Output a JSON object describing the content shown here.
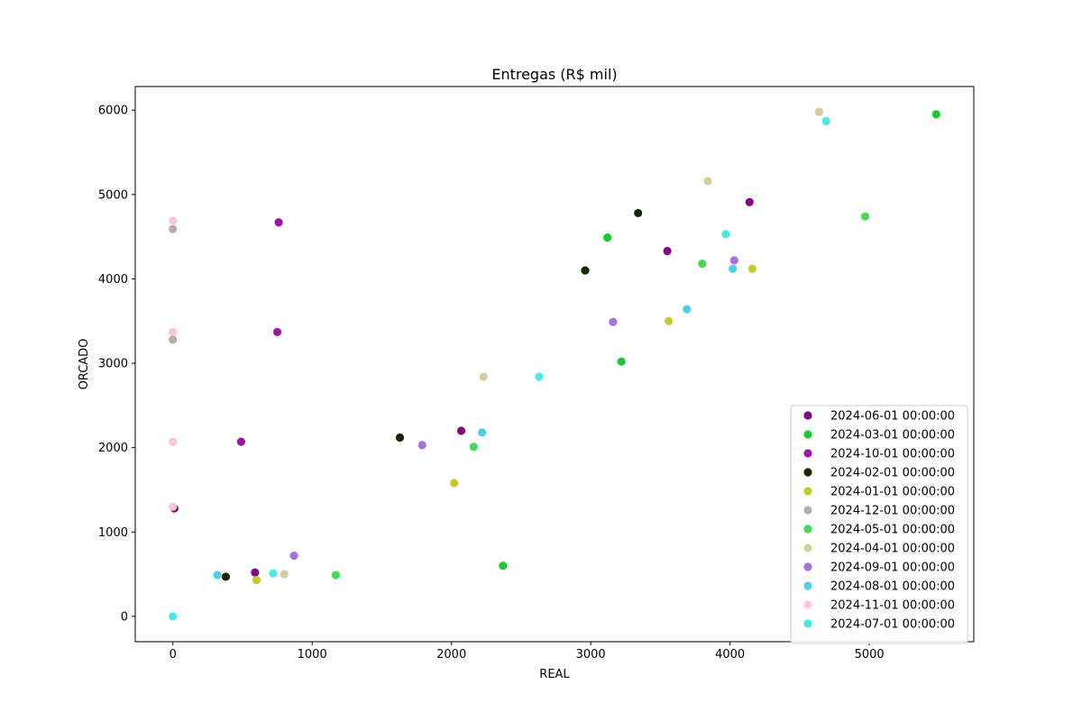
{
  "chart_data": {
    "type": "scatter",
    "title": "Entregas (R$ mil)",
    "xlabel": "REAL",
    "ylabel": "ORCADO",
    "xlim": [
      -270,
      5750
    ],
    "ylim": [
      -300,
      6280
    ],
    "xticks": [
      0,
      1000,
      2000,
      3000,
      4000,
      5000
    ],
    "yticks": [
      0,
      1000,
      2000,
      3000,
      4000,
      5000,
      6000
    ],
    "grid": false,
    "legend_position": "lower-right",
    "series": [
      {
        "name": "2024-06-01 00:00:00",
        "color": "#800a80",
        "points": [
          [
            10,
            1280
          ],
          [
            590,
            520
          ],
          [
            2070,
            2200
          ],
          [
            3550,
            4330
          ],
          [
            4140,
            4910
          ]
        ]
      },
      {
        "name": "2024-03-01 00:00:00",
        "color": "#1ac932",
        "points": [
          [
            2370,
            600
          ],
          [
            3220,
            3020
          ],
          [
            3120,
            4490
          ],
          [
            5480,
            5950
          ]
        ]
      },
      {
        "name": "2024-10-01 00:00:00",
        "color": "#9b17a3",
        "points": [
          [
            490,
            2070
          ],
          [
            750,
            3370
          ],
          [
            760,
            4670
          ]
        ]
      },
      {
        "name": "2024-02-01 00:00:00",
        "color": "#142903",
        "points": [
          [
            380,
            470
          ],
          [
            1630,
            2120
          ],
          [
            2960,
            4100
          ],
          [
            3340,
            4780
          ]
        ]
      },
      {
        "name": "2024-01-01 00:00:00",
        "color": "#c6c832",
        "points": [
          [
            600,
            430
          ],
          [
            2020,
            1580
          ],
          [
            3560,
            3500
          ],
          [
            4160,
            4120
          ]
        ]
      },
      {
        "name": "2024-12-01 00:00:00",
        "color": "#b2b0a3",
        "points": [
          [
            0,
            3280
          ],
          [
            0,
            4590
          ]
        ]
      },
      {
        "name": "2024-05-01 00:00:00",
        "color": "#47d95c",
        "points": [
          [
            1170,
            490
          ],
          [
            2160,
            2010
          ],
          [
            3800,
            4180
          ],
          [
            4970,
            4740
          ]
        ]
      },
      {
        "name": "2024-04-01 00:00:00",
        "color": "#d4cd9c",
        "points": [
          [
            800,
            500
          ],
          [
            2230,
            2840
          ],
          [
            3840,
            5160
          ],
          [
            4640,
            5980
          ]
        ]
      },
      {
        "name": "2024-09-01 00:00:00",
        "color": "#a873d9",
        "points": [
          [
            870,
            720
          ],
          [
            1790,
            2030
          ],
          [
            3160,
            3490
          ],
          [
            4030,
            4220
          ]
        ]
      },
      {
        "name": "2024-08-01 00:00:00",
        "color": "#4ecfe5",
        "points": [
          [
            320,
            490
          ],
          [
            2220,
            2180
          ],
          [
            3690,
            3640
          ],
          [
            4020,
            4120
          ]
        ]
      },
      {
        "name": "2024-11-01 00:00:00",
        "color": "#fcc6d6",
        "points": [
          [
            0,
            1300
          ],
          [
            0,
            2070
          ],
          [
            0,
            3370
          ],
          [
            0,
            4690
          ]
        ]
      },
      {
        "name": "2024-07-01 00:00:00",
        "color": "#47ebe0",
        "points": [
          [
            0,
            0
          ],
          [
            720,
            510
          ],
          [
            2630,
            2840
          ],
          [
            3970,
            4530
          ],
          [
            4690,
            5870
          ]
        ]
      }
    ]
  }
}
